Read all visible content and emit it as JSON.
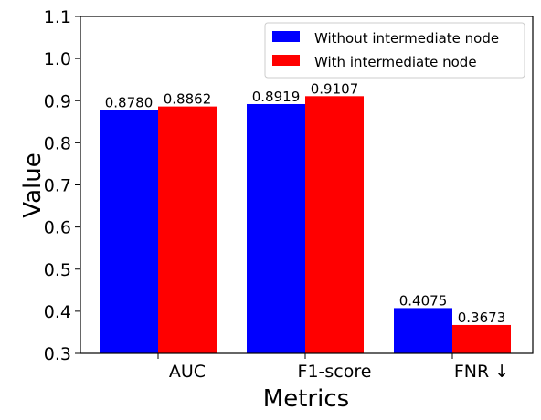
{
  "chart_data": {
    "type": "bar",
    "categories": [
      "AUC",
      "F1-score",
      "FNR ↓"
    ],
    "series": [
      {
        "name": "Without intermediate node",
        "color": "#0000ff",
        "values": [
          0.878,
          0.8919,
          0.4075
        ],
        "labels": [
          "0.8780",
          "0.8919",
          "0.4075"
        ]
      },
      {
        "name": "With intermediate node",
        "color": "#ff0000",
        "values": [
          0.8862,
          0.9107,
          0.3673
        ],
        "labels": [
          "0.8862",
          "0.9107",
          "0.3673"
        ]
      }
    ],
    "xlabel": "Metrics",
    "ylabel": "Value",
    "ylim": [
      0.3,
      1.1
    ],
    "yticks": [
      "0.3",
      "0.4",
      "0.5",
      "0.6",
      "0.7",
      "0.8",
      "0.9",
      "1.0",
      "1.1"
    ],
    "grid": false,
    "legend_position": "top-right"
  }
}
